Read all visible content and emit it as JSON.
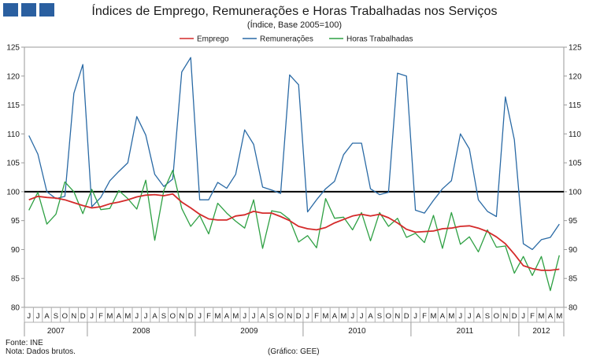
{
  "chart_data": {
    "type": "line",
    "title": "Índices de Emprego, Remunerações e Horas Trabalhadas nos Serviços",
    "subtitle": "(Índice, Base 2005=100)",
    "ylim": [
      80,
      125
    ],
    "yticks": [
      80,
      85,
      90,
      95,
      100,
      105,
      110,
      115,
      120,
      125
    ],
    "reference_line": 100,
    "grid": false,
    "legend_position": "top-center",
    "x": [
      "J",
      "J",
      "A",
      "S",
      "O",
      "N",
      "D",
      "J",
      "F",
      "M",
      "A",
      "M",
      "J",
      "J",
      "A",
      "S",
      "O",
      "N",
      "D",
      "J",
      "F",
      "M",
      "A",
      "M",
      "J",
      "J",
      "A",
      "S",
      "O",
      "N",
      "D",
      "J",
      "F",
      "M",
      "A",
      "M",
      "J",
      "J",
      "A",
      "S",
      "O",
      "N",
      "D",
      "J",
      "F",
      "M",
      "A",
      "M",
      "J",
      "J",
      "A",
      "S",
      "O",
      "N",
      "D",
      "J",
      "F",
      "M",
      "A",
      "M"
    ],
    "years": [
      {
        "label": "2007",
        "start": 0,
        "count": 7
      },
      {
        "label": "2008",
        "start": 7,
        "count": 12
      },
      {
        "label": "2009",
        "start": 19,
        "count": 12
      },
      {
        "label": "2010",
        "start": 31,
        "count": 12
      },
      {
        "label": "2011",
        "start": 43,
        "count": 12
      },
      {
        "label": "2012",
        "start": 55,
        "count": 5
      }
    ],
    "series": [
      {
        "name": "Emprego",
        "color": "#d42a2a",
        "values": [
          98.6,
          99.2,
          99.0,
          98.9,
          98.6,
          98.1,
          97.6,
          97.2,
          97.4,
          97.9,
          98.2,
          98.6,
          99.1,
          99.4,
          99.5,
          99.3,
          99.6,
          98.2,
          97.2,
          96.1,
          95.3,
          95.1,
          95.1,
          95.8,
          96.0,
          96.6,
          96.3,
          96.3,
          95.7,
          95.0,
          94.0,
          93.6,
          93.4,
          93.8,
          94.6,
          95.2,
          95.8,
          96.1,
          95.8,
          96.1,
          95.5,
          94.6,
          93.5,
          93.0,
          93.1,
          93.2,
          93.6,
          93.7,
          94.0,
          94.1,
          93.7,
          93.1,
          92.2,
          91.0,
          89.2,
          87.2,
          86.7,
          86.4,
          86.4,
          86.6
        ]
      },
      {
        "name": "Remunerações",
        "color": "#2a6aa5",
        "values": [
          109.7,
          106.5,
          100.0,
          98.8,
          99.2,
          117.0,
          122.0,
          97.4,
          99.0,
          101.9,
          103.5,
          105.0,
          113.0,
          109.8,
          103.0,
          100.9,
          102.2,
          120.7,
          123.2,
          98.6,
          98.6,
          101.6,
          100.6,
          103.0,
          110.7,
          108.2,
          100.8,
          100.3,
          99.7,
          120.2,
          118.5,
          96.5,
          98.6,
          100.5,
          101.8,
          106.4,
          108.4,
          108.4,
          100.5,
          99.5,
          99.9,
          120.5,
          120.0,
          96.8,
          96.3,
          98.5,
          100.5,
          101.9,
          110.0,
          107.4,
          98.6,
          96.6,
          95.7,
          116.4,
          109.0,
          91.0,
          90.0,
          91.7,
          92.1,
          94.4
        ]
      },
      {
        "name": "Horas Trabalhadas",
        "color": "#2ea043",
        "values": [
          96.8,
          99.9,
          94.4,
          96.1,
          101.7,
          100.0,
          96.2,
          100.4,
          96.9,
          97.1,
          100.2,
          98.8,
          97.0,
          102.0,
          91.6,
          100.2,
          103.7,
          97.1,
          94.0,
          95.9,
          92.7,
          98.0,
          96.3,
          94.9,
          93.7,
          98.6,
          90.2,
          96.7,
          96.4,
          95.2,
          91.3,
          92.4,
          90.3,
          98.8,
          95.4,
          95.6,
          93.4,
          96.4,
          91.5,
          96.4,
          94.0,
          95.4,
          92.1,
          92.8,
          91.2,
          95.9,
          90.2,
          96.4,
          90.9,
          92.2,
          89.6,
          93.4,
          90.4,
          90.6,
          85.9,
          88.8,
          85.5,
          88.8,
          82.9,
          89.0
        ]
      }
    ]
  },
  "footer": {
    "source": "Fonte: INE",
    "note": "Nota: Dados brutos.",
    "credit": "(Gráfico: GEE)"
  }
}
